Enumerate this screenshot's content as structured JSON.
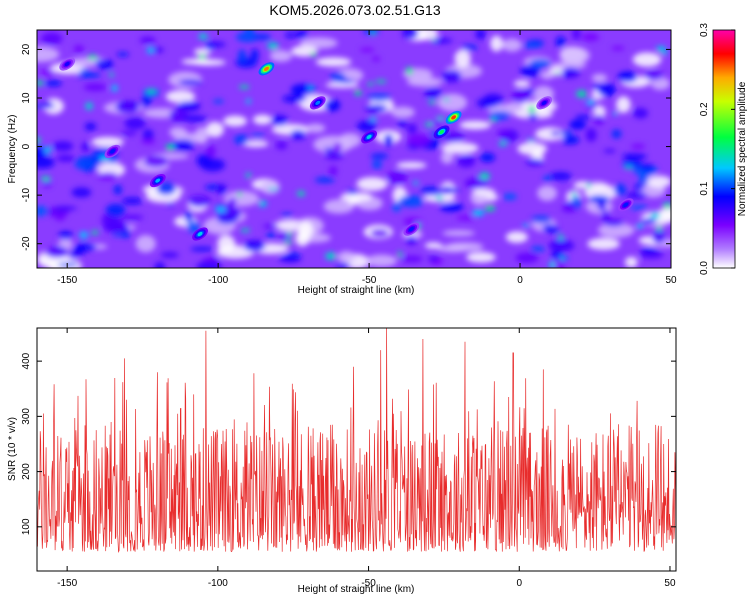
{
  "title": "KOM5.2026.073.02.51.G13",
  "chart_data": [
    {
      "type": "heatmap",
      "xlabel": "Height of straight line (km)",
      "ylabel": "Frequency (Hz)",
      "xlim": [
        -160,
        50
      ],
      "ylim": [
        -25,
        24
      ],
      "xticks": [
        -150,
        -100,
        -50,
        0,
        50
      ],
      "yticks": [
        -20,
        -10,
        0,
        10,
        20
      ],
      "colorbar": {
        "label": "Normalized spectral amplitude",
        "range": [
          0.0,
          0.3
        ],
        "ticks": [
          0.0,
          0.1,
          0.2,
          0.3
        ],
        "colors": [
          "#ffffff",
          "#7a00ff",
          "#0000ff",
          "#00c8ff",
          "#00ff00",
          "#ffff00",
          "#ff0000",
          "#ff00aa"
        ]
      },
      "hotspots": [
        {
          "x": -84,
          "y": 16,
          "value": 0.26
        },
        {
          "x": -22,
          "y": 6,
          "value": 0.27
        },
        {
          "x": -26,
          "y": 3,
          "value": 0.17
        },
        {
          "x": -50,
          "y": 2,
          "value": 0.14
        },
        {
          "x": -120,
          "y": -7,
          "value": 0.13
        },
        {
          "x": -106,
          "y": -18,
          "value": 0.14
        },
        {
          "x": -67,
          "y": 9,
          "value": 0.12
        },
        {
          "x": -135,
          "y": -1,
          "value": 0.1
        },
        {
          "x": -36,
          "y": -17,
          "value": 0.1
        },
        {
          "x": 8,
          "y": 9,
          "value": 0.09
        },
        {
          "x": -150,
          "y": 17,
          "value": 0.09
        },
        {
          "x": 35,
          "y": -12,
          "value": 0.1
        }
      ]
    },
    {
      "type": "line",
      "xlabel": "Height of straight line (km)",
      "ylabel": "SNR (10 * v/v)",
      "xlim": [
        -160,
        52
      ],
      "ylim": [
        20,
        460
      ],
      "xticks": [
        -150,
        -100,
        -50,
        0,
        50
      ],
      "yticks": [
        100,
        200,
        300,
        400
      ],
      "color": "#e82c2c",
      "peaks": [
        {
          "x": -104,
          "y": 455
        },
        {
          "x": -44,
          "y": 460
        },
        {
          "x": -46,
          "y": 420
        },
        {
          "x": -32,
          "y": 440
        },
        {
          "x": -18,
          "y": 435
        },
        {
          "x": -2,
          "y": 415
        },
        {
          "x": -131,
          "y": 405
        },
        {
          "x": -55,
          "y": 390
        },
        {
          "x": 8,
          "y": 385
        },
        {
          "x": -88,
          "y": 378
        },
        {
          "x": -120,
          "y": 380
        }
      ]
    }
  ]
}
